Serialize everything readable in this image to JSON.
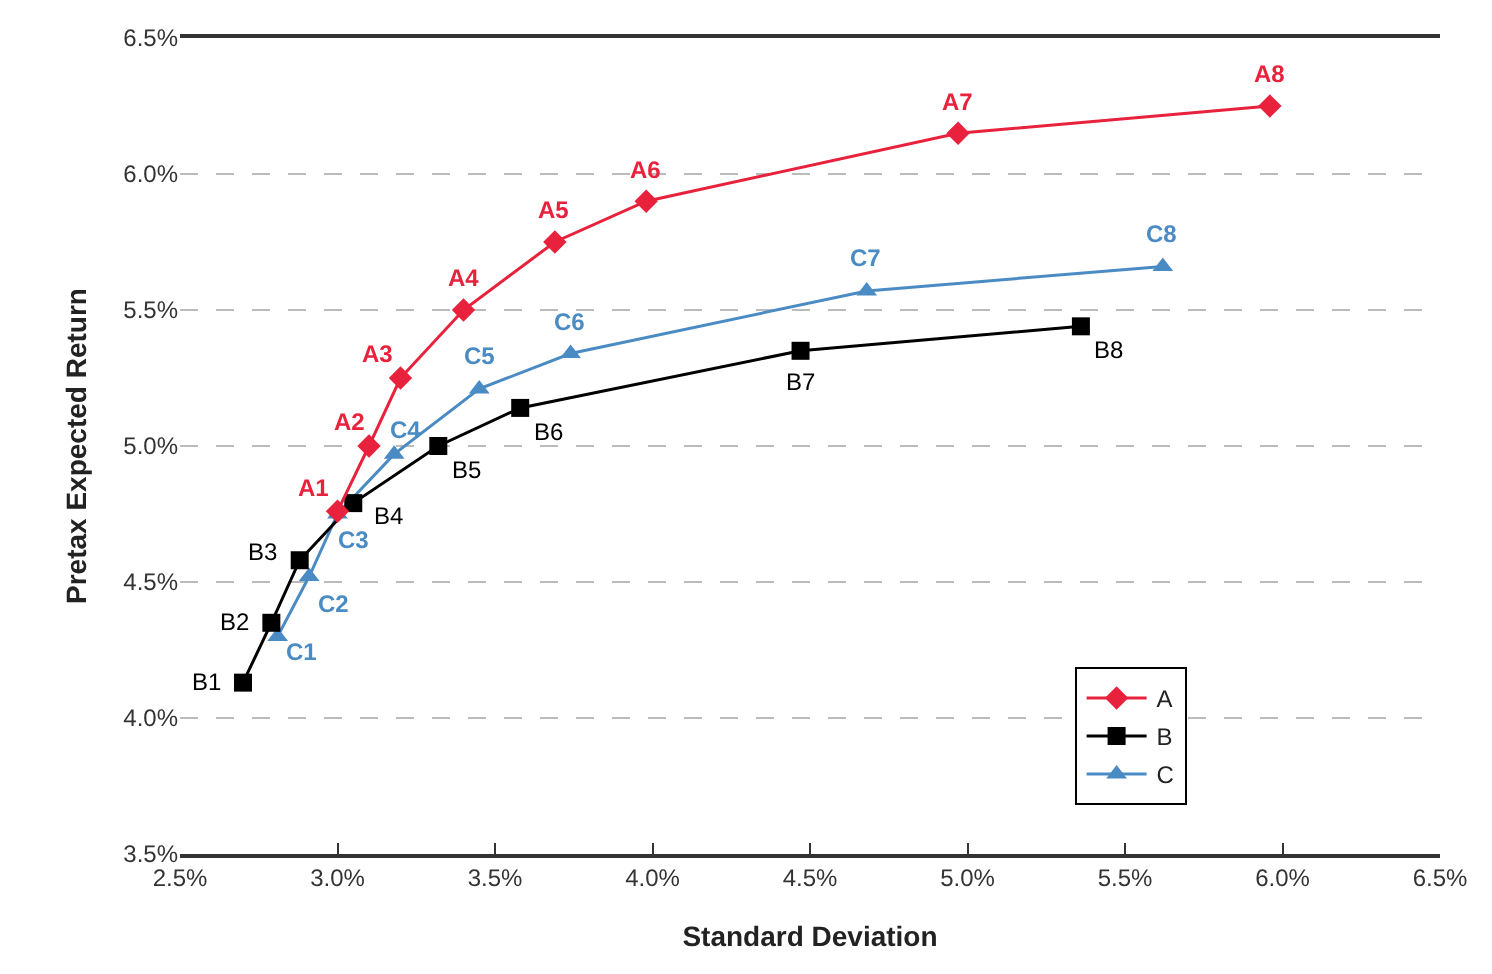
{
  "chart_data": {
    "type": "line",
    "xlabel": "Standard Deviation",
    "ylabel": "Pretax Expected Return",
    "xlim": [
      2.5,
      6.5
    ],
    "ylim": [
      3.5,
      6.5
    ],
    "xticks": [
      {
        "value": 2.5,
        "label": "2.5%"
      },
      {
        "value": 3.0,
        "label": "3.0%"
      },
      {
        "value": 3.5,
        "label": "3.5%"
      },
      {
        "value": 4.0,
        "label": "4.0%"
      },
      {
        "value": 4.5,
        "label": "4.5%"
      },
      {
        "value": 5.0,
        "label": "5.0%"
      },
      {
        "value": 5.5,
        "label": "5.5%"
      },
      {
        "value": 6.0,
        "label": "6.0%"
      },
      {
        "value": 6.5,
        "label": "6.5%"
      }
    ],
    "yticks": [
      {
        "value": 3.5,
        "label": "3.5%"
      },
      {
        "value": 4.0,
        "label": "4.0%"
      },
      {
        "value": 4.5,
        "label": "4.5%"
      },
      {
        "value": 5.0,
        "label": "5.0%"
      },
      {
        "value": 5.5,
        "label": "5.5%"
      },
      {
        "value": 6.0,
        "label": "6.0%"
      },
      {
        "value": 6.5,
        "label": "6.5%"
      }
    ],
    "grid": "y",
    "legend": "bottom right",
    "series": [
      {
        "name": "A",
        "color": "#e8213c",
        "marker": "diamond",
        "x": [
          3.0,
          3.1,
          3.2,
          3.4,
          3.69,
          3.98,
          4.97,
          5.96
        ],
        "values": [
          4.76,
          5.0,
          5.25,
          5.5,
          5.75,
          5.9,
          6.15,
          6.25
        ]
      },
      {
        "name": "B",
        "color": "#000000",
        "marker": "square",
        "x": [
          2.7,
          2.79,
          2.88,
          3.05,
          3.32,
          3.58,
          4.47,
          5.36
        ],
        "values": [
          4.13,
          4.35,
          4.58,
          4.79,
          5.0,
          5.14,
          5.35,
          5.44
        ]
      },
      {
        "name": "C",
        "color": "#4a8bc4",
        "marker": "triangle",
        "x": [
          2.81,
          2.91,
          3.0,
          3.18,
          3.45,
          3.74,
          4.68,
          5.62
        ],
        "values": [
          4.3,
          4.52,
          4.75,
          4.97,
          5.21,
          5.34,
          5.57,
          5.66
        ]
      }
    ],
    "annotations": [
      {
        "text": "A1",
        "x": 3.0,
        "y": 4.76
      },
      {
        "text": "A2",
        "x": 3.1,
        "y": 5.0
      },
      {
        "text": "A3",
        "x": 3.2,
        "y": 5.25
      },
      {
        "text": "A4",
        "x": 3.4,
        "y": 5.5
      },
      {
        "text": "A5",
        "x": 3.69,
        "y": 5.75
      },
      {
        "text": "A6",
        "x": 3.98,
        "y": 5.9
      },
      {
        "text": "A7",
        "x": 4.97,
        "y": 6.15
      },
      {
        "text": "A8",
        "x": 5.96,
        "y": 6.25
      },
      {
        "text": "B1",
        "x": 2.7,
        "y": 4.13
      },
      {
        "text": "B2",
        "x": 2.79,
        "y": 4.35
      },
      {
        "text": "B3",
        "x": 2.88,
        "y": 4.58
      },
      {
        "text": "B4",
        "x": 3.05,
        "y": 4.79
      },
      {
        "text": "B5",
        "x": 3.32,
        "y": 5.0
      },
      {
        "text": "B6",
        "x": 3.58,
        "y": 5.14
      },
      {
        "text": "B7",
        "x": 4.47,
        "y": 5.35
      },
      {
        "text": "B8",
        "x": 5.36,
        "y": 5.44
      },
      {
        "text": "C1",
        "x": 2.81,
        "y": 4.3
      },
      {
        "text": "C2",
        "x": 2.91,
        "y": 4.52
      },
      {
        "text": "C3",
        "x": 3.0,
        "y": 4.75
      },
      {
        "text": "C4",
        "x": 3.18,
        "y": 4.97
      },
      {
        "text": "C5",
        "x": 3.45,
        "y": 5.21
      },
      {
        "text": "C6",
        "x": 3.74,
        "y": 5.34
      },
      {
        "text": "C7",
        "x": 4.68,
        "y": 5.57
      },
      {
        "text": "C8",
        "x": 5.62,
        "y": 5.66
      }
    ]
  }
}
